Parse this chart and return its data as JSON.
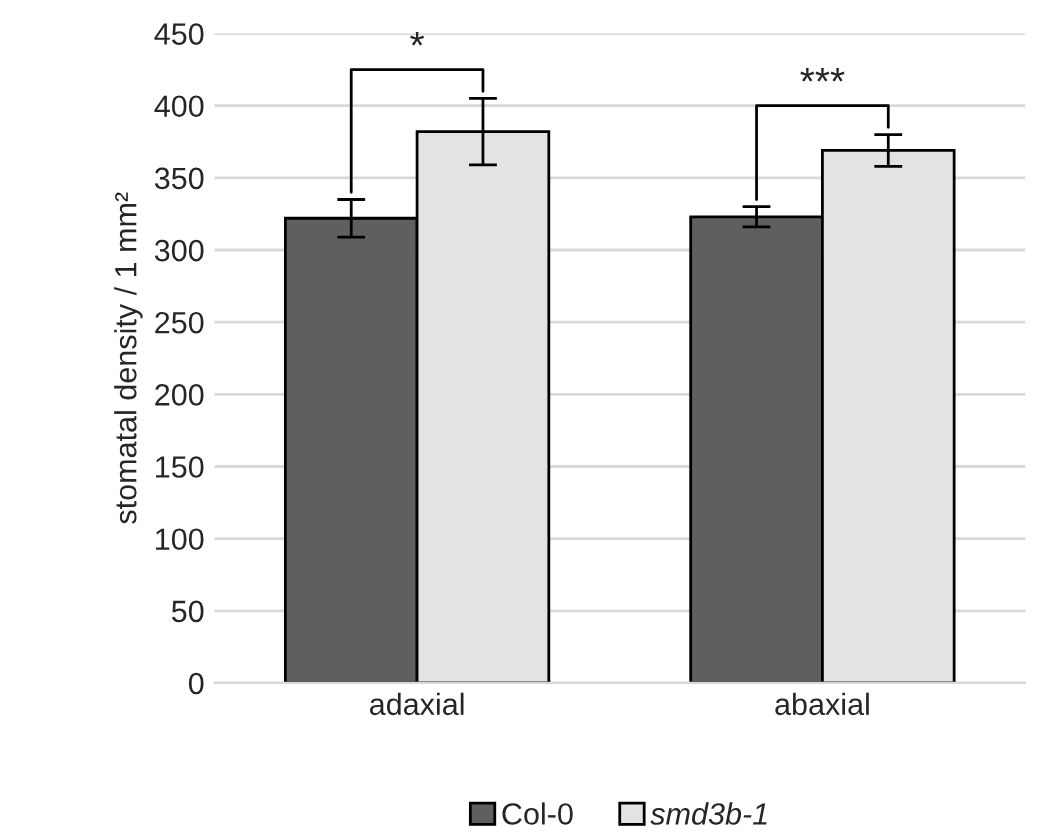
{
  "chart_data": {
    "type": "bar",
    "ylabel": "stomatal density / 1 mm²",
    "categories": [
      "adaxial",
      "abaxial"
    ],
    "series": [
      {
        "name": "Col-0",
        "color": "#5f5f5f",
        "values": [
          322,
          323
        ],
        "errors": [
          13,
          7
        ]
      },
      {
        "name": "smd3b-1",
        "color": "#e3e3e3",
        "values": [
          382,
          369
        ],
        "errors": [
          23,
          11
        ]
      }
    ],
    "ylim": [
      0,
      450
    ],
    "yticks": [
      0,
      50,
      100,
      150,
      200,
      250,
      300,
      350,
      400,
      450
    ],
    "grid": "y",
    "legend": "bottom",
    "annotations": [
      "*",
      "***"
    ]
  }
}
